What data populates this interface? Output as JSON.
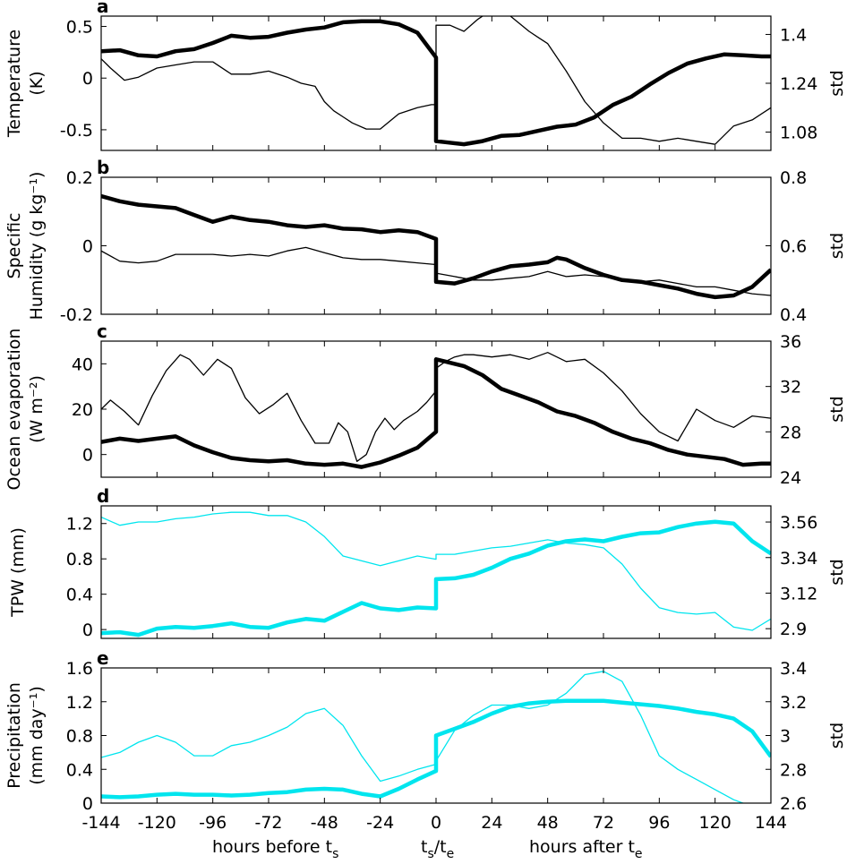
{
  "figure": {
    "x_tick_labels": [
      "-144",
      "-120",
      "-96",
      "-72",
      "-48",
      "-24",
      "0",
      "24",
      "48",
      "72",
      "96",
      "120",
      "144"
    ],
    "bottom_labels": {
      "before": "hours before t",
      "before_sub": "s",
      "mid_a": "t",
      "mid_a_sub": "s",
      "mid_slash": "/t",
      "mid_b_sub": "e",
      "after": "hours after t",
      "after_sub": "e"
    },
    "colors": {
      "black_series": "#000000",
      "cyan_series": "#00e5ee"
    }
  },
  "chart_data": [
    {
      "type": "line",
      "panel": "a",
      "ylabel_lines": [
        "Temperature",
        "(K)"
      ],
      "y2label": "std",
      "xlim": [
        -144,
        144
      ],
      "ylim": [
        -0.7,
        0.6
      ],
      "y2lim": [
        1.02,
        1.46
      ],
      "yticks": [
        -0.5,
        0,
        0.5
      ],
      "ytick_labels": [
        "-0.5",
        "0",
        "0.5"
      ],
      "y2ticks": [
        1.08,
        1.24,
        1.4
      ],
      "y2tick_labels": [
        "1.08",
        "1.24",
        "1.4"
      ],
      "color": "black",
      "series": [
        {
          "name": "mean",
          "axis": "left",
          "width": "thick",
          "x": [
            -144,
            -136,
            -128,
            -120,
            -112,
            -104,
            -96,
            -88,
            -80,
            -72,
            -64,
            -56,
            -48,
            -40,
            -32,
            -24,
            -16,
            -8,
            0,
            0,
            4,
            12,
            20,
            28,
            36,
            44,
            52,
            60,
            68,
            76,
            84,
            92,
            100,
            108,
            116,
            124,
            132,
            140,
            144
          ],
          "y": [
            0.26,
            0.27,
            0.22,
            0.21,
            0.26,
            0.28,
            0.34,
            0.41,
            0.39,
            0.4,
            0.44,
            0.47,
            0.49,
            0.54,
            0.55,
            0.55,
            0.52,
            0.44,
            0.2,
            -0.61,
            -0.62,
            -0.64,
            -0.61,
            -0.56,
            -0.55,
            -0.51,
            -0.47,
            -0.45,
            -0.38,
            -0.26,
            -0.18,
            -0.06,
            0.05,
            0.14,
            0.19,
            0.23,
            0.22,
            0.21,
            0.21
          ]
        },
        {
          "name": "std",
          "axis": "right",
          "width": "thin",
          "x": [
            -144,
            -140,
            -134,
            -128,
            -120,
            -112,
            -104,
            -96,
            -88,
            -80,
            -72,
            -64,
            -58,
            -52,
            -48,
            -44,
            -40,
            -36,
            -30,
            -24,
            -16,
            -8,
            -2,
            0,
            0,
            6,
            12,
            18,
            24,
            32,
            40,
            44,
            48,
            56,
            64,
            72,
            80,
            88,
            96,
            104,
            112,
            120,
            128,
            136,
            144
          ],
          "y": [
            1.32,
            1.29,
            1.25,
            1.26,
            1.29,
            1.3,
            1.31,
            1.31,
            1.27,
            1.27,
            1.28,
            1.26,
            1.24,
            1.23,
            1.18,
            1.15,
            1.13,
            1.11,
            1.09,
            1.09,
            1.14,
            1.16,
            1.17,
            1.17,
            1.43,
            1.43,
            1.41,
            1.45,
            1.48,
            1.46,
            1.41,
            1.39,
            1.37,
            1.28,
            1.18,
            1.11,
            1.06,
            1.06,
            1.05,
            1.06,
            1.05,
            1.04,
            1.1,
            1.12,
            1.16
          ]
        }
      ]
    },
    {
      "type": "line",
      "panel": "b",
      "ylabel_lines": [
        "Specific",
        "Humidity (g kg⁻¹)"
      ],
      "y2label": "std",
      "xlim": [
        -144,
        144
      ],
      "ylim": [
        -0.2,
        0.2
      ],
      "y2lim": [
        0.4,
        0.8
      ],
      "yticks": [
        -0.2,
        0,
        0.2
      ],
      "ytick_labels": [
        "-0.2",
        "0",
        "0.2"
      ],
      "y2ticks": [
        0.4,
        0.6,
        0.8
      ],
      "y2tick_labels": [
        "0.4",
        "0.6",
        "0.8"
      ],
      "color": "black",
      "series": [
        {
          "name": "mean",
          "axis": "left",
          "width": "thick",
          "x": [
            -144,
            -136,
            -128,
            -120,
            -112,
            -104,
            -96,
            -88,
            -80,
            -72,
            -64,
            -56,
            -48,
            -40,
            -32,
            -24,
            -16,
            -8,
            0,
            0,
            8,
            16,
            24,
            32,
            40,
            48,
            52,
            56,
            64,
            72,
            80,
            88,
            96,
            104,
            112,
            120,
            128,
            136,
            144
          ],
          "y": [
            0.145,
            0.13,
            0.12,
            0.115,
            0.11,
            0.09,
            0.07,
            0.085,
            0.075,
            0.07,
            0.06,
            0.055,
            0.06,
            0.05,
            0.048,
            0.04,
            0.045,
            0.04,
            0.02,
            -0.105,
            -0.11,
            -0.095,
            -0.075,
            -0.06,
            -0.055,
            -0.048,
            -0.035,
            -0.04,
            -0.065,
            -0.085,
            -0.1,
            -0.105,
            -0.115,
            -0.125,
            -0.14,
            -0.15,
            -0.145,
            -0.12,
            -0.07
          ]
        },
        {
          "name": "std",
          "axis": "right",
          "width": "thin",
          "x": [
            -144,
            -136,
            -128,
            -120,
            -112,
            -104,
            -96,
            -88,
            -80,
            -72,
            -64,
            -56,
            -48,
            -40,
            -32,
            -24,
            -16,
            -8,
            0,
            0,
            8,
            16,
            24,
            32,
            40,
            48,
            56,
            64,
            72,
            80,
            88,
            96,
            104,
            112,
            120,
            128,
            136,
            144
          ],
          "y": [
            0.585,
            0.555,
            0.55,
            0.555,
            0.575,
            0.575,
            0.575,
            0.57,
            0.575,
            0.57,
            0.585,
            0.595,
            0.58,
            0.565,
            0.56,
            0.56,
            0.555,
            0.55,
            0.545,
            0.52,
            0.51,
            0.5,
            0.5,
            0.505,
            0.51,
            0.525,
            0.51,
            0.515,
            0.51,
            0.5,
            0.495,
            0.5,
            0.49,
            0.48,
            0.48,
            0.47,
            0.46,
            0.455
          ]
        }
      ]
    },
    {
      "type": "line",
      "panel": "c",
      "ylabel_lines": [
        "Ocean evaporation",
        "(W m⁻²)"
      ],
      "y2label": "std",
      "xlim": [
        -144,
        144
      ],
      "ylim": [
        -10,
        50
      ],
      "y2lim": [
        24,
        36
      ],
      "yticks": [
        0,
        20,
        40
      ],
      "ytick_labels": [
        "0",
        "20",
        "40"
      ],
      "y2ticks": [
        24,
        28,
        32,
        36
      ],
      "y2tick_labels": [
        "24",
        "28",
        "32",
        "36"
      ],
      "color": "black",
      "series": [
        {
          "name": "mean",
          "axis": "left",
          "width": "thick",
          "x": [
            -144,
            -136,
            -128,
            -120,
            -112,
            -104,
            -96,
            -88,
            -80,
            -72,
            -64,
            -56,
            -48,
            -40,
            -32,
            -24,
            -16,
            -8,
            0,
            0,
            4,
            12,
            20,
            28,
            36,
            44,
            52,
            60,
            68,
            76,
            84,
            92,
            100,
            108,
            116,
            124,
            132,
            140,
            144
          ],
          "y": [
            5.5,
            7,
            6,
            7,
            8,
            4,
            1,
            -1.5,
            -2.5,
            -3,
            -2.5,
            -4,
            -4.5,
            -4,
            -5.5,
            -3.5,
            -0.5,
            3,
            10,
            42,
            41,
            39,
            35,
            29,
            26,
            23,
            19,
            17,
            14,
            10,
            7,
            5,
            2,
            0,
            -1,
            -2,
            -4.5,
            -4,
            -4
          ]
        },
        {
          "name": "std",
          "axis": "right",
          "width": "thin",
          "x": [
            -144,
            -140,
            -134,
            -128,
            -122,
            -116,
            -110,
            -106,
            -100,
            -94,
            -88,
            -82,
            -76,
            -70,
            -64,
            -58,
            -52,
            -46,
            -42,
            -38,
            -34,
            -30,
            -26,
            -22,
            -18,
            -14,
            -8,
            -4,
            0,
            0,
            4,
            8,
            12,
            16,
            24,
            32,
            40,
            48,
            56,
            64,
            72,
            80,
            88,
            96,
            104,
            112,
            120,
            128,
            136,
            144
          ],
          "y": [
            30,
            30.8,
            29.8,
            28.6,
            31.2,
            33.4,
            34.8,
            34.4,
            33,
            34.4,
            33.6,
            31,
            29.6,
            30.4,
            31.4,
            29,
            27,
            27,
            28.8,
            28,
            25.4,
            26,
            28,
            29.2,
            28.2,
            29,
            29.8,
            30.6,
            31.6,
            33.6,
            34.2,
            34.6,
            34.8,
            34.8,
            34.6,
            34.8,
            34.4,
            35,
            34.2,
            34.4,
            33.2,
            31.6,
            29.6,
            28,
            27.2,
            30,
            29,
            28.4,
            29.4,
            29.2
          ]
        }
      ]
    },
    {
      "type": "line",
      "panel": "d",
      "ylabel_lines": [
        "TPW (mm)"
      ],
      "y2label": "std",
      "xlim": [
        -144,
        144
      ],
      "ylim": [
        -0.1,
        1.4
      ],
      "y2lim": [
        2.84,
        3.66
      ],
      "yticks": [
        0,
        0.4,
        0.8,
        1.2
      ],
      "ytick_labels": [
        "0",
        "0.4",
        "0.8",
        "1.2"
      ],
      "y2ticks": [
        2.9,
        3.12,
        3.34,
        3.56
      ],
      "y2tick_labels": [
        "2.9",
        "3.12",
        "3.34",
        "3.56"
      ],
      "color": "cyan",
      "series": [
        {
          "name": "mean",
          "axis": "left",
          "width": "thick",
          "x": [
            -144,
            -136,
            -128,
            -120,
            -112,
            -104,
            -96,
            -88,
            -80,
            -72,
            -64,
            -56,
            -48,
            -40,
            -32,
            -24,
            -16,
            -8,
            0,
            0,
            8,
            16,
            24,
            32,
            40,
            48,
            56,
            64,
            72,
            80,
            88,
            96,
            104,
            112,
            120,
            128,
            136,
            144
          ],
          "y": [
            -0.04,
            -0.03,
            -0.06,
            0.01,
            0.03,
            0.02,
            0.04,
            0.07,
            0.03,
            0.02,
            0.08,
            0.12,
            0.1,
            0.2,
            0.3,
            0.24,
            0.22,
            0.25,
            0.24,
            0.57,
            0.58,
            0.62,
            0.7,
            0.8,
            0.86,
            0.95,
            1.0,
            1.02,
            1.0,
            1.05,
            1.09,
            1.1,
            1.16,
            1.2,
            1.22,
            1.2,
            1.0,
            0.86
          ]
        },
        {
          "name": "std",
          "axis": "right",
          "width": "thin",
          "x": [
            -144,
            -136,
            -128,
            -120,
            -112,
            -104,
            -96,
            -88,
            -80,
            -72,
            -64,
            -56,
            -48,
            -40,
            -32,
            -24,
            -16,
            -8,
            0,
            0,
            8,
            16,
            24,
            32,
            40,
            48,
            56,
            64,
            72,
            80,
            88,
            96,
            104,
            112,
            120,
            128,
            136,
            144
          ],
          "y": [
            3.59,
            3.54,
            3.56,
            3.56,
            3.58,
            3.59,
            3.61,
            3.62,
            3.62,
            3.6,
            3.6,
            3.56,
            3.47,
            3.35,
            3.32,
            3.29,
            3.32,
            3.35,
            3.33,
            3.36,
            3.36,
            3.38,
            3.4,
            3.41,
            3.43,
            3.45,
            3.43,
            3.42,
            3.4,
            3.3,
            3.15,
            3.03,
            3.0,
            2.99,
            3.0,
            2.91,
            2.89,
            2.96
          ]
        }
      ]
    },
    {
      "type": "line",
      "panel": "e",
      "ylabel_lines": [
        "Precipitation",
        "(mm day⁻¹)"
      ],
      "y2label": "std",
      "xlim": [
        -144,
        144
      ],
      "ylim": [
        0,
        1.6
      ],
      "y2lim": [
        2.6,
        3.4
      ],
      "yticks": [
        0,
        0.4,
        0.8,
        1.2,
        1.6
      ],
      "ytick_labels": [
        "0",
        "0.4",
        "0.8",
        "1.2",
        "1.6"
      ],
      "y2ticks": [
        2.6,
        2.8,
        3,
        3.2,
        3.4
      ],
      "y2tick_labels": [
        "2.6",
        "2.8",
        "3",
        "3.2",
        "3.4"
      ],
      "color": "cyan",
      "series": [
        {
          "name": "mean",
          "axis": "left",
          "width": "thick",
          "x": [
            -144,
            -136,
            -128,
            -120,
            -112,
            -104,
            -96,
            -88,
            -80,
            -72,
            -64,
            -56,
            -48,
            -40,
            -32,
            -24,
            -16,
            -8,
            0,
            0,
            8,
            16,
            24,
            32,
            40,
            48,
            56,
            64,
            72,
            80,
            88,
            96,
            104,
            112,
            120,
            128,
            136,
            144
          ],
          "y": [
            0.08,
            0.07,
            0.08,
            0.1,
            0.11,
            0.1,
            0.1,
            0.09,
            0.1,
            0.12,
            0.13,
            0.16,
            0.17,
            0.16,
            0.11,
            0.08,
            0.17,
            0.28,
            0.38,
            0.8,
            0.88,
            0.96,
            1.06,
            1.14,
            1.18,
            1.2,
            1.21,
            1.21,
            1.21,
            1.19,
            1.17,
            1.15,
            1.12,
            1.08,
            1.05,
            1.0,
            0.85,
            0.55
          ]
        },
        {
          "name": "std",
          "axis": "right",
          "width": "thin",
          "x": [
            -144,
            -136,
            -128,
            -120,
            -112,
            -104,
            -96,
            -88,
            -80,
            -72,
            -64,
            -56,
            -48,
            -40,
            -32,
            -24,
            -16,
            -8,
            0,
            0,
            8,
            16,
            24,
            32,
            40,
            48,
            56,
            64,
            72,
            80,
            88,
            96,
            104,
            112,
            120,
            128,
            136,
            144
          ],
          "y": [
            2.87,
            2.9,
            2.96,
            3.0,
            2.96,
            2.88,
            2.88,
            2.94,
            2.96,
            3.0,
            3.05,
            3.13,
            3.16,
            3.06,
            2.88,
            2.73,
            2.76,
            2.8,
            2.83,
            2.85,
            3.03,
            3.12,
            3.18,
            3.18,
            3.16,
            3.18,
            3.25,
            3.36,
            3.38,
            3.32,
            3.12,
            2.88,
            2.8,
            2.74,
            2.68,
            2.62,
            2.58,
            2.6
          ]
        }
      ]
    }
  ]
}
